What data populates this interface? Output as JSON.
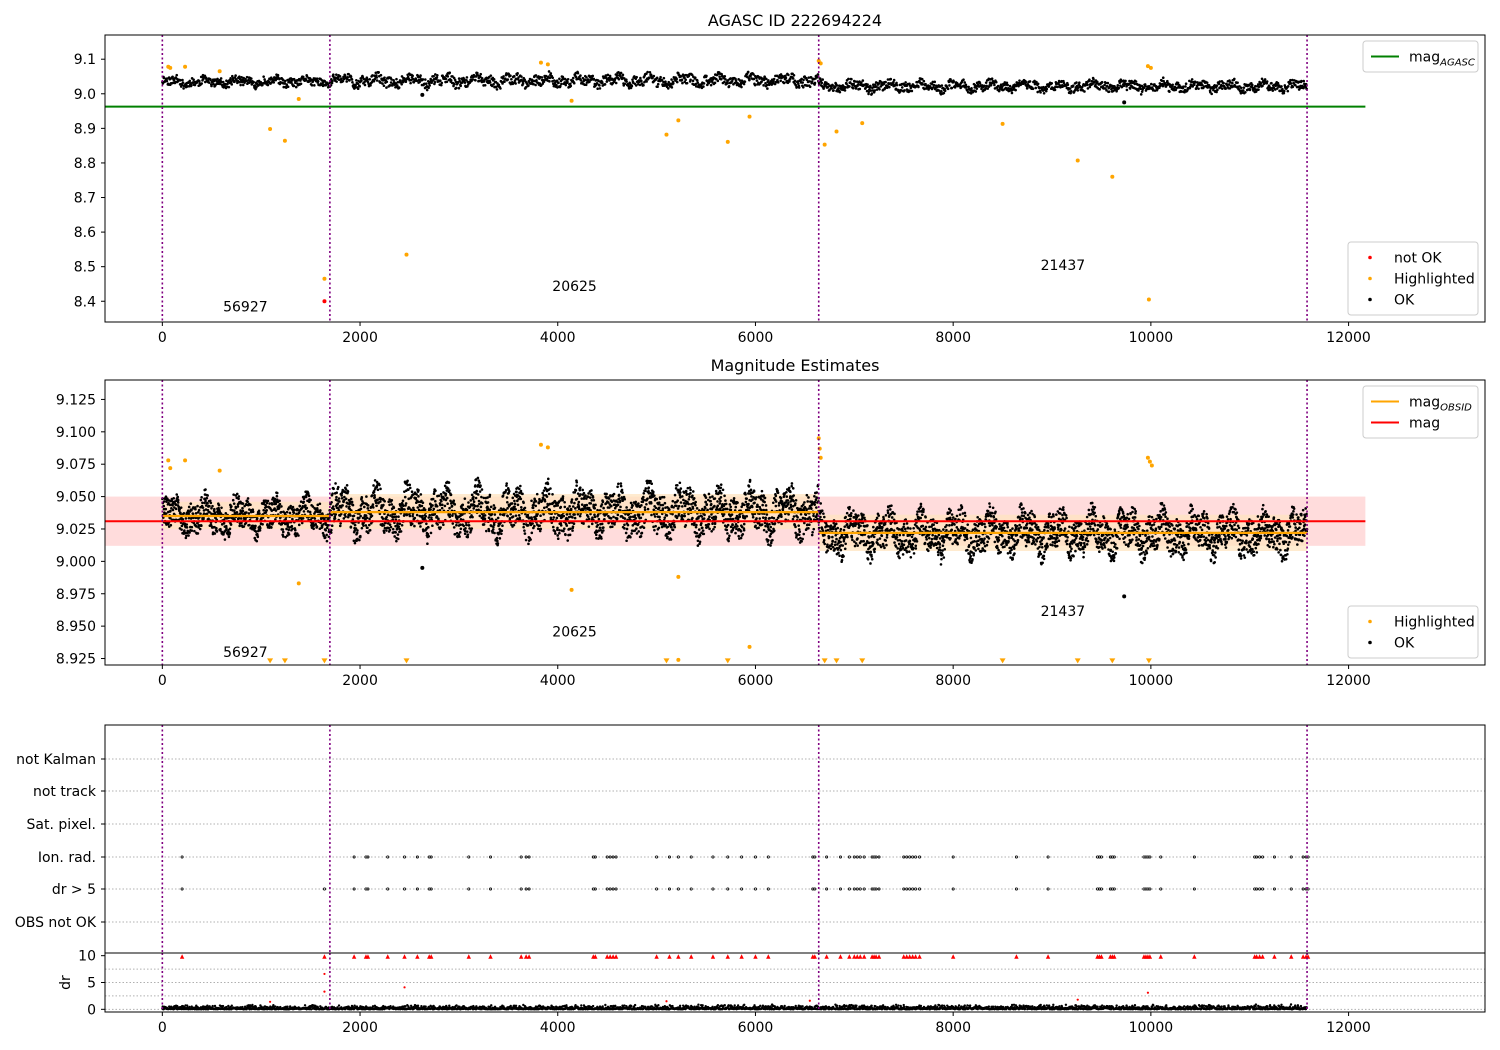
{
  "chart_data": [
    {
      "id": "top",
      "type": "scatter",
      "title": "AGASC ID 222694224",
      "xlim": [
        -580,
        13380
      ],
      "ylim": [
        8.34,
        9.17
      ],
      "xticks": [
        0,
        2000,
        4000,
        6000,
        8000,
        10000,
        12000
      ],
      "yticks": [
        8.4,
        8.5,
        8.6,
        8.7,
        8.8,
        8.9,
        9.0,
        9.1
      ],
      "ytick_labels": [
        "8.4",
        "8.5",
        "8.6",
        "8.7",
        "8.8",
        "8.9",
        "9.0",
        "9.1"
      ],
      "obs_boundaries": [
        0,
        1695,
        6640,
        11580
      ],
      "obs_labels": [
        {
          "text": "56927",
          "x": 840,
          "y": 8.37
        },
        {
          "text": "20625",
          "x": 4170,
          "y": 8.43
        },
        {
          "text": "21437",
          "x": 9110,
          "y": 8.49
        }
      ],
      "reference_lines": [
        {
          "name": "mag",
          "subscript": "AGASC",
          "y": 8.963,
          "x": [
            -580,
            12170
          ],
          "color": "#008000"
        }
      ],
      "main_band": {
        "n": 2400,
        "segments": [
          {
            "x0": 0,
            "x1": 1695,
            "center": 9.035,
            "amp": 0.018
          },
          {
            "x0": 1695,
            "x1": 6640,
            "center": 9.038,
            "amp": 0.022
          },
          {
            "x0": 6640,
            "x1": 11580,
            "center": 9.022,
            "amp": 0.02
          }
        ]
      },
      "series": [
        {
          "name": "not OK",
          "color": "#ff0000",
          "points": [
            [
              1640,
              8.4
            ]
          ]
        },
        {
          "name": "Highlighted",
          "color": "#ffa500",
          "points": [
            [
              60,
              9.078
            ],
            [
              80,
              9.075
            ],
            [
              230,
              9.078
            ],
            [
              580,
              9.065
            ],
            [
              1090,
              8.898
            ],
            [
              1240,
              8.864
            ],
            [
              1380,
              8.985
            ],
            [
              1640,
              8.465
            ],
            [
              2470,
              8.535
            ],
            [
              3830,
              9.09
            ],
            [
              3900,
              9.085
            ],
            [
              4140,
              8.98
            ],
            [
              5100,
              8.882
            ],
            [
              5220,
              8.923
            ],
            [
              5720,
              8.861
            ],
            [
              5940,
              8.934
            ],
            [
              6640,
              9.095
            ],
            [
              6660,
              9.088
            ],
            [
              6700,
              8.853
            ],
            [
              6820,
              8.891
            ],
            [
              7080,
              8.915
            ],
            [
              8500,
              8.913
            ],
            [
              9260,
              8.807
            ],
            [
              9610,
              8.76
            ],
            [
              9970,
              9.08
            ],
            [
              10000,
              9.075
            ],
            [
              9980,
              8.405
            ]
          ]
        },
        {
          "name": "OK",
          "color": "#000000",
          "points": [
            [
              2630,
              8.997
            ],
            [
              9730,
              8.975
            ]
          ]
        }
      ],
      "legends": [
        {
          "position": "upper right",
          "entries": [
            {
              "label": "mag",
              "subscript": "AGASC",
              "kind": "line",
              "color": "#008000"
            }
          ]
        },
        {
          "position": "lower right",
          "entries": [
            {
              "label": "not OK",
              "kind": "marker",
              "color": "#ff0000"
            },
            {
              "label": "Highlighted",
              "kind": "marker",
              "color": "#ffa500"
            },
            {
              "label": "OK",
              "kind": "marker",
              "color": "#000000"
            }
          ]
        }
      ]
    },
    {
      "id": "middle",
      "type": "scatter",
      "title": "Magnitude Estimates",
      "xlim": [
        -580,
        13380
      ],
      "ylim": [
        8.92,
        9.14
      ],
      "xticks": [
        0,
        2000,
        4000,
        6000,
        8000,
        10000,
        12000
      ],
      "yticks": [
        8.925,
        8.95,
        8.975,
        9.0,
        9.025,
        9.05,
        9.075,
        9.1,
        9.125
      ],
      "ytick_labels": [
        "8.925",
        "8.950",
        "8.975",
        "9.000",
        "9.025",
        "9.050",
        "9.075",
        "9.100",
        "9.125"
      ],
      "obs_boundaries": [
        0,
        1695,
        6640,
        11580
      ],
      "obs_labels": [
        {
          "text": "56927",
          "x": 840,
          "y": 8.926
        },
        {
          "text": "20625",
          "x": 4170,
          "y": 8.942
        },
        {
          "text": "21437",
          "x": 9110,
          "y": 8.958
        }
      ],
      "bands": [
        {
          "x0": -580,
          "x1": 12170,
          "y0": 9.012,
          "y1": 9.05,
          "color": "#ffd0d0"
        },
        {
          "x0": 0,
          "x1": 1695,
          "y0": 9.025,
          "y1": 9.046,
          "color": "#ffe4c0"
        },
        {
          "x0": 1695,
          "x1": 6640,
          "y0": 9.025,
          "y1": 9.052,
          "color": "#ffe4c0"
        },
        {
          "x0": 6640,
          "x1": 11580,
          "y0": 9.008,
          "y1": 9.036,
          "color": "#ffe4c0"
        }
      ],
      "reference_lines": [
        {
          "name": "mag",
          "y": 9.031,
          "x": [
            -580,
            12170
          ],
          "color": "#ff0000"
        }
      ],
      "step_lines": [
        {
          "name": "mag",
          "subscript": "OBSID",
          "color": "#ffa500",
          "segments": [
            [
              0,
              1695,
              9.035
            ],
            [
              1695,
              6640,
              9.038
            ],
            [
              6640,
              11580,
              9.022
            ]
          ]
        }
      ],
      "main_band": {
        "n": 5200,
        "segments": [
          {
            "x0": 0,
            "x1": 1695,
            "center": 9.035,
            "amp": 0.017
          },
          {
            "x0": 1695,
            "x1": 6640,
            "center": 9.038,
            "amp": 0.022
          },
          {
            "x0": 6640,
            "x1": 11580,
            "center": 9.022,
            "amp": 0.02
          }
        ]
      },
      "series": [
        {
          "name": "Highlighted",
          "color": "#ffa500",
          "points": [
            [
              60,
              9.078
            ],
            [
              80,
              9.072
            ],
            [
              230,
              9.078
            ],
            [
              580,
              9.07
            ],
            [
              1380,
              8.983
            ],
            [
              3830,
              9.09
            ],
            [
              3900,
              9.088
            ],
            [
              4140,
              8.978
            ],
            [
              5220,
              8.988
            ],
            [
              5220,
              8.924
            ],
            [
              5940,
              8.934
            ],
            [
              6640,
              9.095
            ],
            [
              6650,
              9.087
            ],
            [
              6660,
              9.08
            ],
            [
              9970,
              9.08
            ],
            [
              9990,
              9.077
            ],
            [
              10010,
              9.074
            ]
          ]
        },
        {
          "name": "OK",
          "color": "#000000",
          "points": [
            [
              2630,
              8.995
            ],
            [
              9730,
              8.973
            ]
          ]
        }
      ],
      "clipped_markers": {
        "color": "#ffa500",
        "y": 8.922,
        "x": [
          1090,
          1240,
          1640,
          2470,
          5100,
          5720,
          6700,
          6820,
          7080,
          8500,
          9260,
          9610,
          9980
        ]
      },
      "legends": [
        {
          "position": "upper right",
          "entries": [
            {
              "label": "mag",
              "subscript": "OBSID",
              "kind": "line",
              "color": "#ffa500"
            },
            {
              "label": "mag",
              "kind": "line",
              "color": "#ff0000"
            }
          ]
        },
        {
          "position": "lower right",
          "entries": [
            {
              "label": "Highlighted",
              "kind": "marker",
              "color": "#ffa500"
            },
            {
              "label": "OK",
              "kind": "marker",
              "color": "#000000"
            }
          ]
        }
      ]
    },
    {
      "id": "flags",
      "type": "scatter",
      "xlim": [
        -580,
        13380
      ],
      "obs_boundaries": [
        0,
        1695,
        6640,
        11580
      ],
      "categories": [
        "not Kalman",
        "not track",
        "Sat. pixel.",
        "Ion. rad.",
        "dr > 5",
        "OBS not OK"
      ],
      "flag_x": [
        200,
        1640,
        1940,
        2060,
        2080,
        2280,
        2450,
        2580,
        2700,
        2720,
        3100,
        3320,
        3630,
        3680,
        3710,
        4360,
        4380,
        4500,
        4530,
        4560,
        4590,
        5000,
        5130,
        5220,
        5350,
        5570,
        5720,
        5860,
        6000,
        6130,
        6580,
        6600,
        6720,
        6860,
        6950,
        7000,
        7030,
        7060,
        7100,
        7180,
        7200,
        7220,
        7250,
        7500,
        7530,
        7560,
        7590,
        7620,
        7660,
        8000,
        8640,
        8960,
        9460,
        9480,
        9500,
        9590,
        9610,
        9630,
        9930,
        9950,
        9970,
        9990,
        10100,
        10440,
        11050,
        11070,
        11100,
        11130,
        11250,
        11420,
        11540,
        11570,
        11590
      ],
      "ion_rad_x": [
        200,
        1940,
        2060,
        2080,
        2280,
        2450,
        2580,
        2700,
        2720,
        3100,
        3320,
        3630,
        3680,
        3710,
        4360,
        4380,
        4500,
        4530,
        4560,
        4590,
        5000,
        5130,
        5220,
        5350,
        5570,
        5720,
        5860,
        6000,
        6130,
        6580,
        6600,
        6720,
        6860,
        6950,
        7000,
        7030,
        7060,
        7100,
        7180,
        7200,
        7220,
        7250,
        7500,
        7530,
        7560,
        7590,
        7620,
        7660,
        8000,
        8640,
        8960,
        9460,
        9480,
        9500,
        9590,
        9610,
        9630,
        9930,
        9950,
        9970,
        9990,
        10100,
        10440,
        11050,
        11070,
        11100,
        11130,
        11250,
        11420,
        11540,
        11570,
        11590
      ]
    },
    {
      "id": "dr",
      "type": "scatter",
      "xlim": [
        -580,
        13380
      ],
      "ylim": [
        -0.5,
        10.5
      ],
      "ylabel": "dr",
      "xticks": [
        0,
        2000,
        4000,
        6000,
        8000,
        10000,
        12000
      ],
      "yticks": [
        0,
        5,
        10
      ],
      "ytick_labels": [
        "0",
        "5",
        "10"
      ],
      "obs_boundaries": [
        0,
        1695,
        6640,
        11580
      ],
      "clip_y": 9.8,
      "points": [
        [
          1640,
          6.6
        ],
        [
          1640,
          3.3
        ],
        [
          2450,
          4.1
        ],
        [
          9970,
          3.1
        ],
        [
          9260,
          1.8
        ],
        [
          6550,
          1.6
        ],
        [
          5100,
          1.5
        ],
        [
          1090,
          1.4
        ]
      ],
      "baseline": {
        "n": 3000,
        "y_min": 0.0,
        "y_max": 0.9
      }
    }
  ]
}
